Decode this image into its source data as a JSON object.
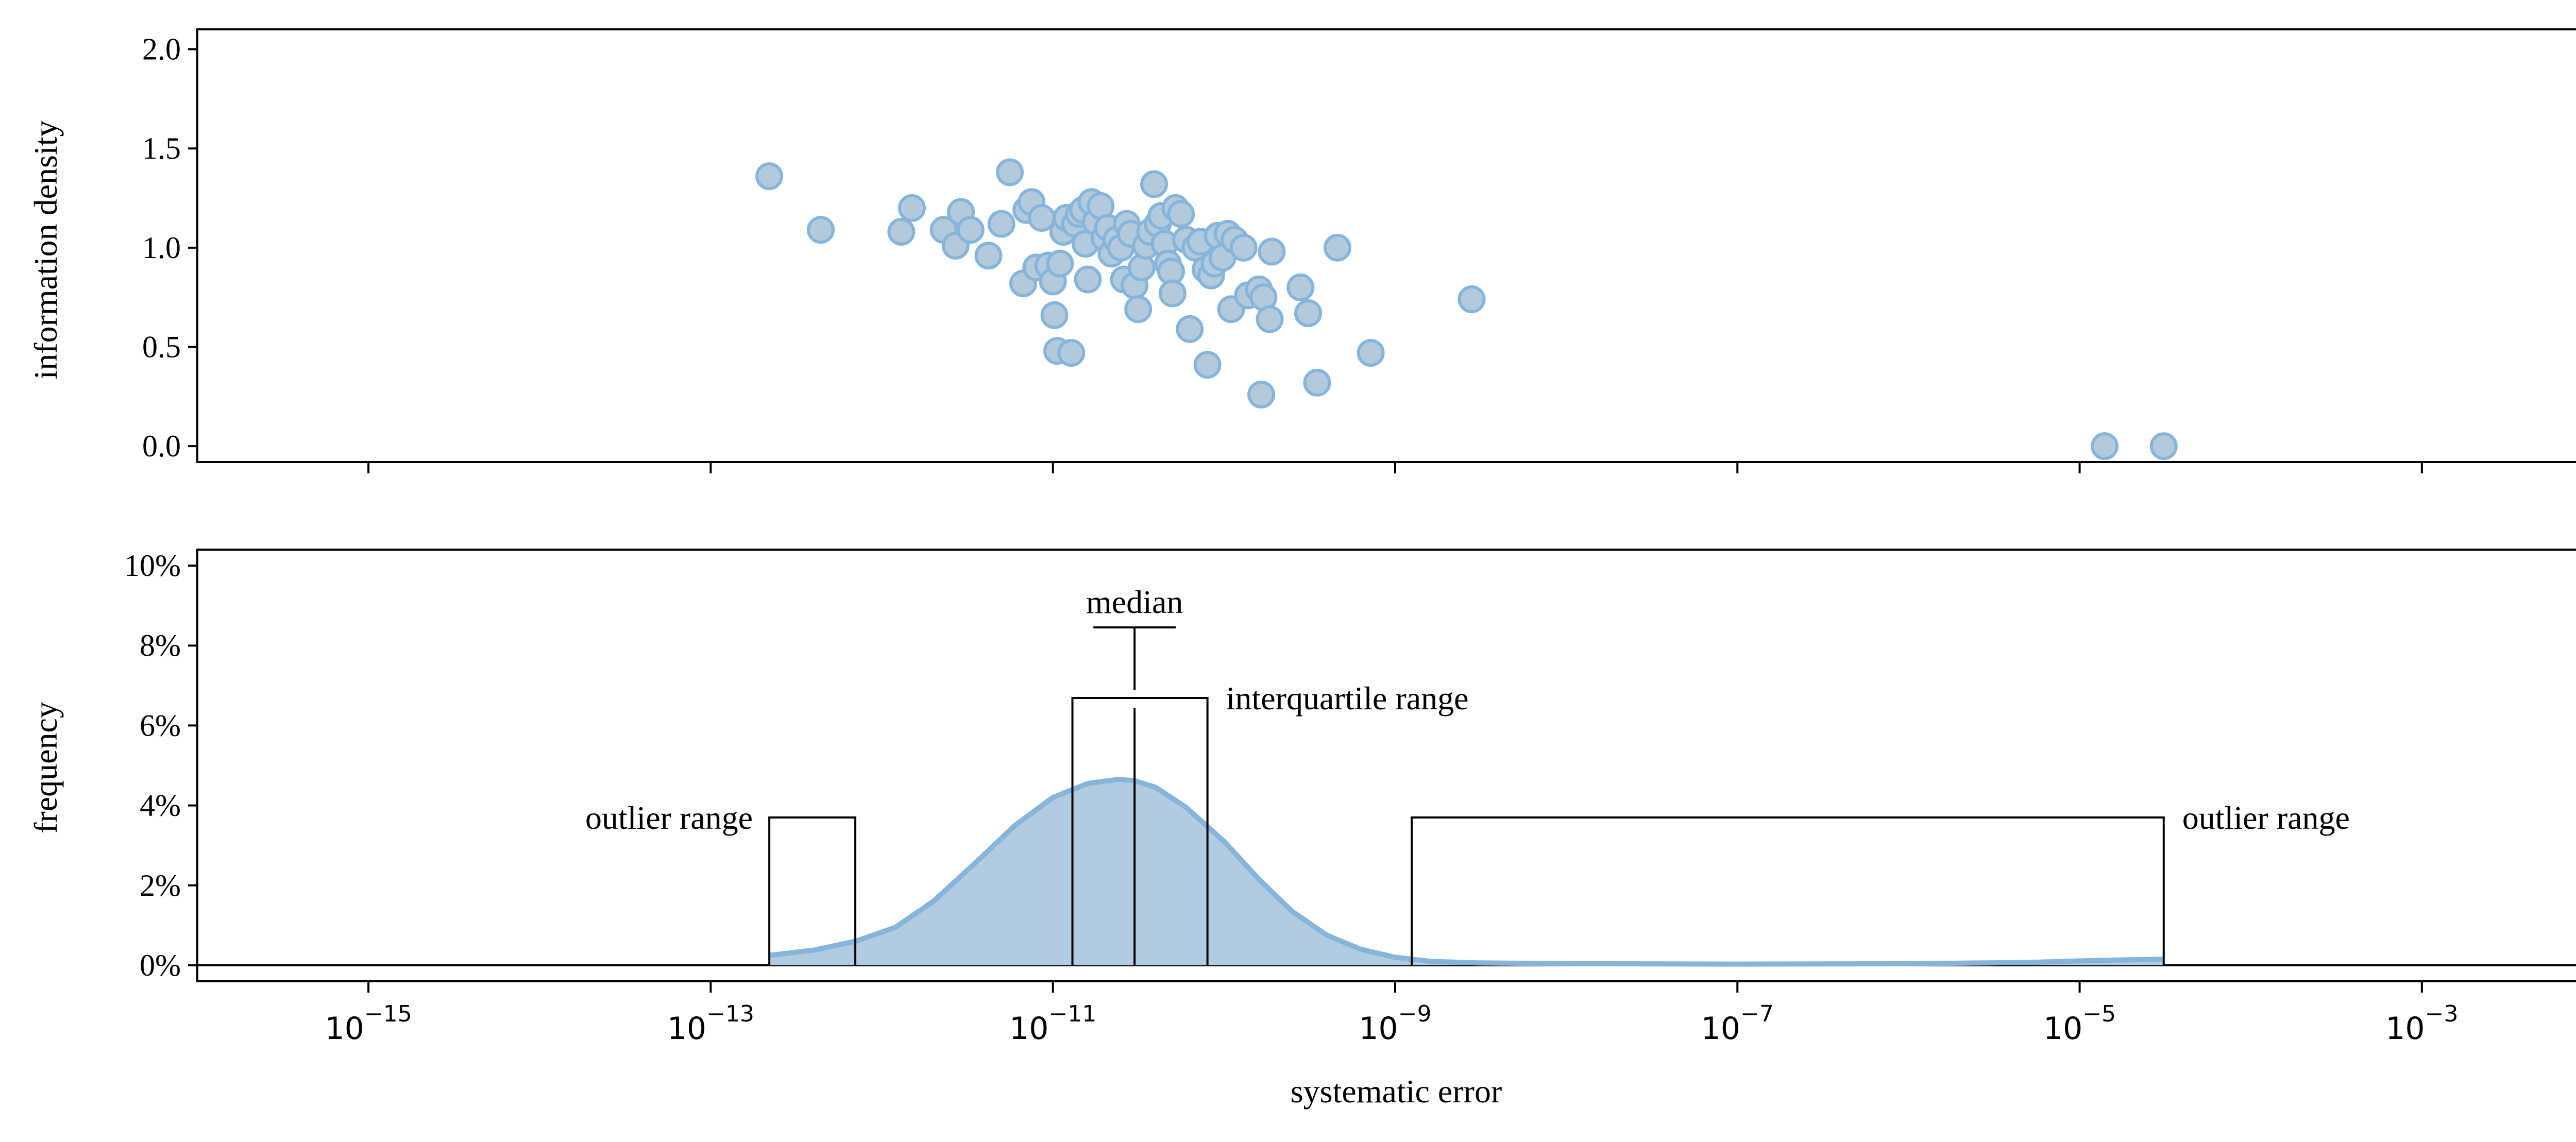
{
  "chart_data": [
    {
      "type": "scatter",
      "ylabel": "information density",
      "xscale": "log",
      "xlim": [
        1e-16,
        0.01
      ],
      "ylim": [
        -0.08,
        2.1
      ],
      "yticks": [
        "0.0",
        "0.5",
        "1.0",
        "1.5",
        "2.0"
      ],
      "marker_color": "#b3c9dc",
      "marker_edge": "#85b5db",
      "points": [
        {
          "x": 2.2e-13,
          "y": 1.36
        },
        {
          "x": 4.4e-13,
          "y": 1.09
        },
        {
          "x": 1.3e-12,
          "y": 1.08
        },
        {
          "x": 1.5e-12,
          "y": 1.2
        },
        {
          "x": 2.3e-12,
          "y": 1.09
        },
        {
          "x": 2.7e-12,
          "y": 1.01
        },
        {
          "x": 2.9e-12,
          "y": 1.18
        },
        {
          "x": 3.3e-12,
          "y": 1.09
        },
        {
          "x": 4.2e-12,
          "y": 0.96
        },
        {
          "x": 5e-12,
          "y": 1.12
        },
        {
          "x": 5.6e-12,
          "y": 1.38
        },
        {
          "x": 6.7e-12,
          "y": 0.82
        },
        {
          "x": 7e-12,
          "y": 1.19
        },
        {
          "x": 7.5e-12,
          "y": 1.23
        },
        {
          "x": 8e-12,
          "y": 0.9
        },
        {
          "x": 8.6e-12,
          "y": 1.15
        },
        {
          "x": 9.4e-12,
          "y": 0.91
        },
        {
          "x": 1e-11,
          "y": 0.83
        },
        {
          "x": 1.02e-11,
          "y": 0.66
        },
        {
          "x": 1.06e-11,
          "y": 0.48
        },
        {
          "x": 1.1e-11,
          "y": 0.92
        },
        {
          "x": 1.15e-11,
          "y": 1.08
        },
        {
          "x": 1.2e-11,
          "y": 1.15
        },
        {
          "x": 1.28e-11,
          "y": 0.47
        },
        {
          "x": 1.35e-11,
          "y": 1.12
        },
        {
          "x": 1.42e-11,
          "y": 1.17
        },
        {
          "x": 1.5e-11,
          "y": 1.19
        },
        {
          "x": 1.55e-11,
          "y": 1.02
        },
        {
          "x": 1.6e-11,
          "y": 0.84
        },
        {
          "x": 1.68e-11,
          "y": 1.23
        },
        {
          "x": 1.78e-11,
          "y": 1.13
        },
        {
          "x": 1.9e-11,
          "y": 1.21
        },
        {
          "x": 2e-11,
          "y": 1.05
        },
        {
          "x": 2.1e-11,
          "y": 1.1
        },
        {
          "x": 2.2e-11,
          "y": 0.97
        },
        {
          "x": 2.35e-11,
          "y": 1.04
        },
        {
          "x": 2.5e-11,
          "y": 1.0
        },
        {
          "x": 2.6e-11,
          "y": 0.84
        },
        {
          "x": 2.7e-11,
          "y": 1.12
        },
        {
          "x": 2.85e-11,
          "y": 1.07
        },
        {
          "x": 3e-11,
          "y": 0.81
        },
        {
          "x": 3.15e-11,
          "y": 0.69
        },
        {
          "x": 3.3e-11,
          "y": 0.9
        },
        {
          "x": 3.5e-11,
          "y": 1.01
        },
        {
          "x": 3.7e-11,
          "y": 1.08
        },
        {
          "x": 3.9e-11,
          "y": 1.32
        },
        {
          "x": 4.1e-11,
          "y": 1.12
        },
        {
          "x": 4.3e-11,
          "y": 1.16
        },
        {
          "x": 4.5e-11,
          "y": 1.02
        },
        {
          "x": 4.7e-11,
          "y": 0.92
        },
        {
          "x": 4.9e-11,
          "y": 0.88
        },
        {
          "x": 5e-11,
          "y": 0.77
        },
        {
          "x": 5.2e-11,
          "y": 1.2
        },
        {
          "x": 5.6e-11,
          "y": 1.17
        },
        {
          "x": 6e-11,
          "y": 1.04
        },
        {
          "x": 6.3e-11,
          "y": 0.59
        },
        {
          "x": 6.8e-11,
          "y": 1.0
        },
        {
          "x": 7.3e-11,
          "y": 1.03
        },
        {
          "x": 7.8e-11,
          "y": 0.89
        },
        {
          "x": 8e-11,
          "y": 0.41
        },
        {
          "x": 8.4e-11,
          "y": 0.86
        },
        {
          "x": 8.8e-11,
          "y": 0.92
        },
        {
          "x": 9.2e-11,
          "y": 1.06
        },
        {
          "x": 9.8e-11,
          "y": 0.95
        },
        {
          "x": 1.05e-10,
          "y": 1.07
        },
        {
          "x": 1.1e-10,
          "y": 0.69
        },
        {
          "x": 1.15e-10,
          "y": 1.04
        },
        {
          "x": 1.3e-10,
          "y": 1.0
        },
        {
          "x": 1.38e-10,
          "y": 0.76
        },
        {
          "x": 1.6e-10,
          "y": 0.79
        },
        {
          "x": 1.65e-10,
          "y": 0.26
        },
        {
          "x": 1.7e-10,
          "y": 0.75
        },
        {
          "x": 1.85e-10,
          "y": 0.64
        },
        {
          "x": 1.9e-10,
          "y": 0.98
        },
        {
          "x": 2.8e-10,
          "y": 0.8
        },
        {
          "x": 3.1e-10,
          "y": 0.67
        },
        {
          "x": 3.5e-10,
          "y": 0.32
        },
        {
          "x": 4.6e-10,
          "y": 1.0
        },
        {
          "x": 7.2e-10,
          "y": 0.47
        },
        {
          "x": 2.8e-09,
          "y": 0.74
        },
        {
          "x": 1.4e-05,
          "y": 0.0
        },
        {
          "x": 3.1e-05,
          "y": 0.0
        }
      ]
    },
    {
      "type": "area",
      "xlabel": "systematic error",
      "ylabel": "frequency",
      "xscale": "log",
      "xlim": [
        1e-16,
        0.01
      ],
      "ylim": [
        -0.4,
        10.4
      ],
      "yticks": [
        "0%",
        "2%",
        "4%",
        "6%",
        "8%",
        "10%"
      ],
      "xticks": [
        {
          "value": 1e-15,
          "base": "10",
          "exp": "−15"
        },
        {
          "value": 1e-13,
          "base": "10",
          "exp": "−13"
        },
        {
          "value": 1e-11,
          "base": "10",
          "exp": "−11"
        },
        {
          "value": 1e-09,
          "base": "10",
          "exp": "−9"
        },
        {
          "value": 1e-07,
          "base": "10",
          "exp": "−7"
        },
        {
          "value": 1e-05,
          "base": "10",
          "exp": "−5"
        },
        {
          "value": 0.001,
          "base": "10",
          "exp": "−3"
        }
      ],
      "fill_color": "#b1cbe1",
      "line_color": "#85b5db",
      "x": [
        2.2e-13,
        4e-13,
        7e-13,
        1.2e-12,
        2e-12,
        3.5e-12,
        6e-12,
        1e-11,
        1.6e-11,
        2.4e-11,
        3e-11,
        4e-11,
        6e-11,
        1e-10,
        1.6e-10,
        2.5e-10,
        4e-10,
        6.3e-10,
        1e-09,
        1.6e-09,
        3e-09,
        6e-09,
        1e-08,
        1e-07,
        1e-06,
        5e-06,
        1e-05,
        2e-05,
        3.1e-05
      ],
      "y": [
        0.25,
        0.38,
        0.6,
        0.95,
        1.6,
        2.55,
        3.5,
        4.2,
        4.55,
        4.65,
        4.62,
        4.45,
        3.95,
        3.1,
        2.15,
        1.35,
        0.75,
        0.4,
        0.2,
        0.1,
        0.06,
        0.05,
        0.04,
        0.03,
        0.04,
        0.07,
        0.11,
        0.14,
        0.15
      ],
      "annotations": {
        "median": {
          "label": "median",
          "x": 3e-11
        },
        "interquartile_range": {
          "label": "interquartile range",
          "x": [
            1.3e-11,
            8e-11
          ]
        },
        "outlier_range_low": {
          "label": "outlier range",
          "x": [
            2.2e-13,
            7e-13
          ]
        },
        "outlier_range_high": {
          "label": "outlier range",
          "x": [
            1.25e-09,
            3.1e-05
          ]
        }
      }
    }
  ]
}
